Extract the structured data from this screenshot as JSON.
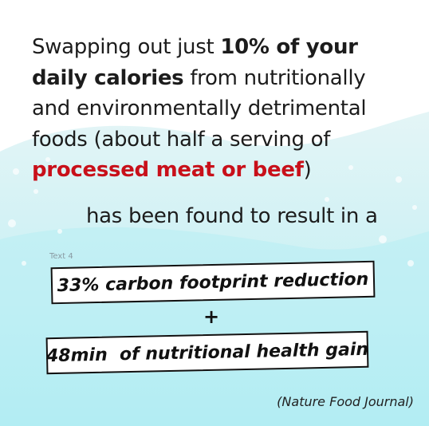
{
  "paragraph": {
    "segments": [
      "Swapping out just ",
      "10% of your",
      "daily calories",
      " from nutritionally",
      "and environmentally detrimental",
      "foods (about half a serving of",
      "processed meat or beef",
      ")"
    ]
  },
  "result_intro": "has been found to result in a",
  "label": "Text 4",
  "results": [
    "33% carbon footprint reduction",
    "+",
    "48min  of nutritional health gain"
  ],
  "source": "(Nature Food Journal)"
}
